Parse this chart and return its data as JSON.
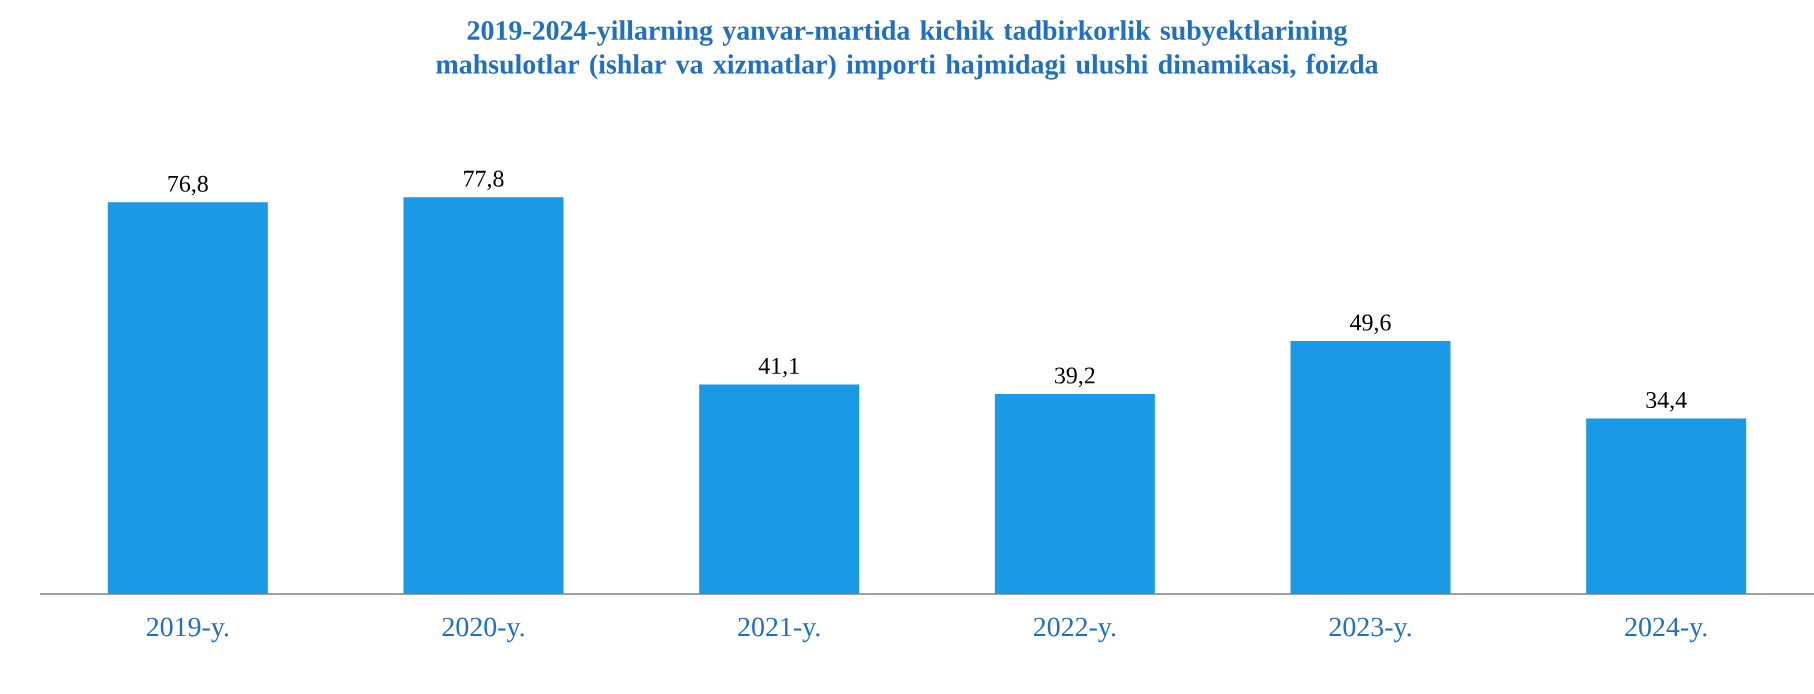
{
  "chart_data": {
    "type": "bar",
    "title": "2019-2024-yillarning yanvar-martida kichik tadbirkorlik subyektlarining mahsulotlar (ishlar va xizmatlar) importi hajmidagi ulushi dinamikasi, foizda",
    "categories": [
      "2019-y.",
      "2020-y.",
      "2021-y.",
      "2022-y.",
      "2023-y.",
      "2024-y."
    ],
    "values": [
      76.8,
      77.8,
      41.1,
      39.2,
      49.6,
      34.4
    ],
    "value_labels": [
      "76,8",
      "77,8",
      "41,1",
      "39,2",
      "49,6",
      "34,4"
    ],
    "color": "#1a9ae6"
  }
}
